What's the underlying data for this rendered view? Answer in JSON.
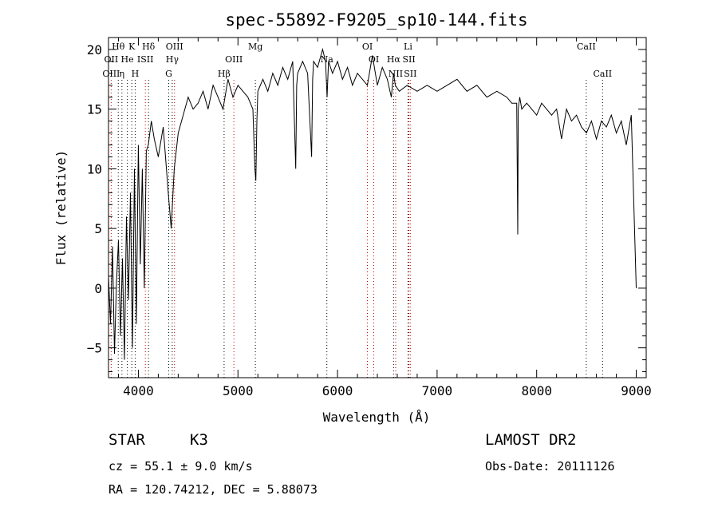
{
  "chart_data": {
    "type": "line",
    "title": "spec-55892-F9205_sp10-144.fits",
    "xlabel": "Wavelength (Å)",
    "ylabel": "Flux (relative)",
    "xlim": [
      3700,
      9100
    ],
    "ylim": [
      -7.5,
      21
    ],
    "xticks": [
      4000,
      5000,
      6000,
      7000,
      8000,
      9000
    ],
    "xtick_labels": [
      "4000",
      "5000",
      "6000",
      "7000",
      "8000",
      "9000"
    ],
    "yticks": [
      -5,
      0,
      5,
      10,
      15,
      20
    ],
    "ytick_labels": [
      "−5",
      "0",
      "5",
      "10",
      "15",
      "20"
    ],
    "grid": false,
    "legend": "none",
    "line_color": "#000000",
    "absorption_line_color": "#000000",
    "emission_line_color": "#cc0000",
    "series": [
      {
        "x": [
          3700,
          3720,
          3740,
          3760,
          3780,
          3800,
          3820,
          3840,
          3860,
          3880,
          3900,
          3920,
          3940,
          3960,
          3980,
          4000,
          4020,
          4040,
          4060,
          4080,
          4100,
          4130,
          4160,
          4200,
          4250,
          4300,
          4330,
          4360,
          4400,
          4450,
          4500,
          4550,
          4600,
          4650,
          4700,
          4750,
          4800,
          4850,
          4900,
          4950,
          5000,
          5050,
          5100,
          5150,
          5170,
          5180,
          5190,
          5200,
          5250,
          5300,
          5350,
          5400,
          5450,
          5500,
          5550,
          5580,
          5590,
          5600,
          5650,
          5700,
          5740,
          5750,
          5760,
          5800,
          5850,
          5880,
          5895,
          5910,
          5950,
          6000,
          6050,
          6100,
          6150,
          6200,
          6250,
          6300,
          6350,
          6400,
          6450,
          6500,
          6540,
          6563,
          6580,
          6620,
          6700,
          6800,
          6900,
          7000,
          7100,
          7200,
          7300,
          7400,
          7500,
          7600,
          7700,
          7750,
          7800,
          7810,
          7815,
          7830,
          7850,
          7900,
          7950,
          8000,
          8050,
          8100,
          8150,
          8200,
          8250,
          8300,
          8350,
          8400,
          8450,
          8500,
          8550,
          8600,
          8650,
          8700,
          8750,
          8800,
          8850,
          8900,
          8950,
          9000
        ],
        "y": [
          1.0,
          -3.0,
          3.5,
          -5.5,
          0.5,
          4.0,
          -4.0,
          2.5,
          -6.0,
          6.0,
          -1.0,
          8.0,
          -5.0,
          10.0,
          -3.0,
          12.0,
          2.0,
          10.0,
          0.0,
          11.5,
          12.0,
          14.0,
          12.5,
          11.0,
          13.5,
          8.0,
          5.0,
          10.0,
          13.0,
          14.5,
          16.0,
          15.0,
          15.5,
          16.5,
          15.0,
          17.0,
          16.0,
          15.0,
          17.5,
          16.0,
          17.0,
          16.5,
          16.0,
          15.0,
          10.0,
          9.0,
          14.0,
          16.5,
          17.5,
          16.5,
          18.0,
          17.0,
          18.5,
          17.5,
          19.0,
          10.0,
          17.0,
          18.0,
          19.0,
          18.0,
          11.0,
          17.5,
          19.0,
          18.5,
          20.0,
          19.0,
          16.0,
          19.0,
          18.0,
          19.0,
          17.5,
          18.5,
          17.0,
          18.0,
          17.5,
          17.0,
          19.5,
          17.0,
          18.5,
          17.5,
          16.0,
          18.0,
          17.0,
          16.5,
          17.0,
          16.5,
          17.0,
          16.5,
          17.0,
          17.5,
          16.5,
          17.0,
          16.0,
          16.5,
          16.0,
          15.5,
          15.5,
          4.5,
          15.0,
          16.0,
          15.0,
          15.5,
          15.0,
          14.5,
          15.5,
          15.0,
          14.5,
          15.0,
          12.5,
          15.0,
          14.0,
          14.5,
          13.5,
          13.0,
          14.0,
          12.5,
          14.0,
          13.5,
          14.5,
          13.0,
          14.0,
          12.0,
          14.5,
          0.0
        ]
      }
    ],
    "spectral_lines": [
      {
        "label": "Hθ",
        "x": 3798,
        "row": 1,
        "type": "absorption"
      },
      {
        "label": "K",
        "x": 3934,
        "row": 1,
        "type": "absorption"
      },
      {
        "label": "Hδ",
        "x": 4102,
        "row": 1,
        "type": "absorption"
      },
      {
        "label": "OIII",
        "x": 4363,
        "row": 1,
        "type": "emission"
      },
      {
        "label": "Mg",
        "x": 5175,
        "row": 1,
        "type": "absorption"
      },
      {
        "label": "OI",
        "x": 6300,
        "row": 1,
        "type": "emission"
      },
      {
        "label": "Li",
        "x": 6708,
        "row": 1,
        "type": "absorption"
      },
      {
        "label": "CaII",
        "x": 8498,
        "row": 1,
        "type": "absorption"
      },
      {
        "label": "OII",
        "x": 3727,
        "row": 2,
        "type": "emission"
      },
      {
        "label": "He",
        "x": 3889,
        "row": 2,
        "type": "absorption"
      },
      {
        "label": "ISII",
        "x": 4070,
        "row": 2,
        "type": "emission"
      },
      {
        "label": "Hγ",
        "x": 4340,
        "row": 2,
        "type": "absorption"
      },
      {
        "label": "OIII",
        "x": 4959,
        "row": 2,
        "type": "emission"
      },
      {
        "label": "Na",
        "x": 5893,
        "row": 2,
        "type": "absorption"
      },
      {
        "label": "OI",
        "x": 6364,
        "row": 2,
        "type": "emission"
      },
      {
        "label": "Hα",
        "x": 6563,
        "row": 2,
        "type": "absorption"
      },
      {
        "label": "SII",
        "x": 6717,
        "row": 2,
        "type": "emission"
      },
      {
        "label": "OIII",
        "x": 3727,
        "row": 3,
        "type": "emission"
      },
      {
        "label": "η",
        "x": 3835,
        "row": 3,
        "type": "absorption"
      },
      {
        "label": "H",
        "x": 3968,
        "row": 3,
        "type": "absorption"
      },
      {
        "label": "G",
        "x": 4305,
        "row": 3,
        "type": "absorption"
      },
      {
        "label": "Hβ",
        "x": 4861,
        "row": 3,
        "type": "absorption"
      },
      {
        "label": "NII",
        "x": 6584,
        "row": 3,
        "type": "emission"
      },
      {
        "label": "SII",
        "x": 6731,
        "row": 3,
        "type": "emission"
      },
      {
        "label": "CaII",
        "x": 8662,
        "row": 3,
        "type": "absorption"
      }
    ]
  },
  "info": {
    "object_class": "STAR",
    "subclass": "K3",
    "survey": "LAMOST DR2",
    "cz": "cz = 55.1 ± 9.0 km/s",
    "obs_date": "Obs-Date: 20111126",
    "coords": "RA = 120.74212, DEC =   5.88073"
  }
}
